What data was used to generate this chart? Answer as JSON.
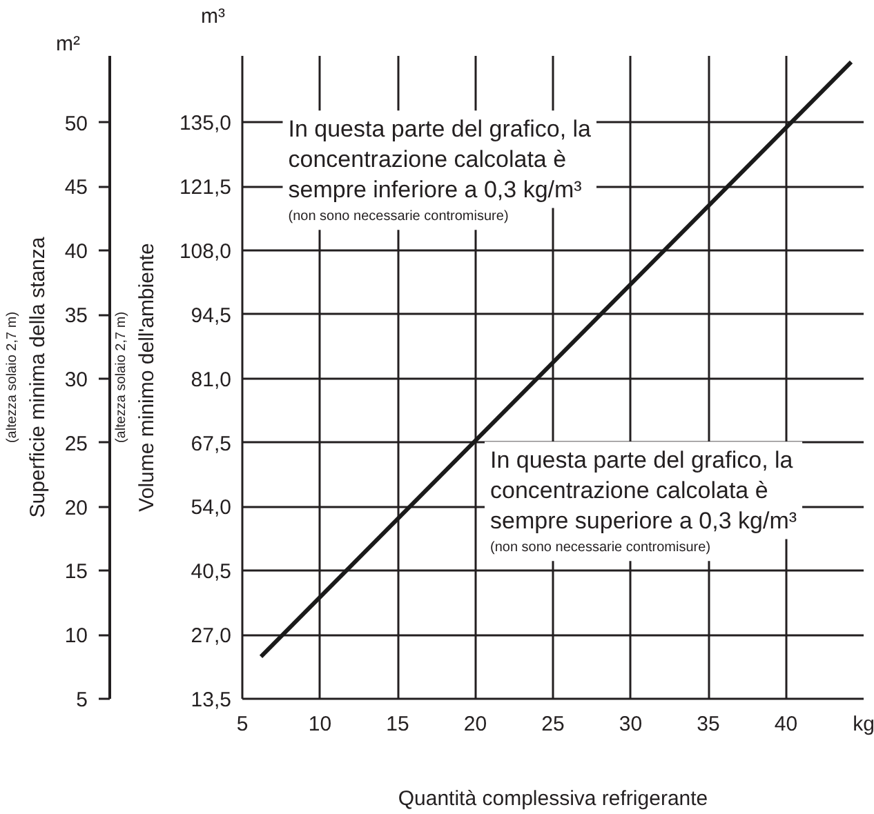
{
  "chart_data": {
    "type": "line",
    "xlabel": "Quantità complessiva refrigerante",
    "ylabel": "Volume minimo dell'ambiente",
    "y2label": "Superficie minima della stanza",
    "series": [
      {
        "x": [
          6.2,
          44.2
        ],
        "values": [
          22.4,
          147.7
        ],
        "color": "#1a1a1a"
      }
    ],
    "xlim": [
      5,
      45
    ],
    "xticks": [
      5,
      10,
      15,
      20,
      25,
      30,
      35,
      40,
      {
        "value": 45,
        "label": "kg"
      }
    ],
    "ylim": [
      13.5,
      149.0
    ],
    "yticks": [
      {
        "value": 13.5,
        "label": "13,5"
      },
      {
        "value": 27.0,
        "label": "27,0"
      },
      {
        "value": 40.5,
        "label": "40,5"
      },
      {
        "value": 54.0,
        "label": "54,0"
      },
      {
        "value": 67.5,
        "label": "67,5"
      },
      {
        "value": 81.0,
        "label": "81,0"
      },
      {
        "value": 94.5,
        "label": "94,5"
      },
      {
        "value": 108.0,
        "label": "108,0"
      },
      {
        "value": 121.5,
        "label": "121,5"
      },
      {
        "value": 135.0,
        "label": "135,0"
      }
    ],
    "y2lim": [
      5,
      55.2
    ],
    "y2ticks": [
      5,
      10,
      15,
      20,
      25,
      30,
      35,
      40,
      45,
      50
    ],
    "grid": true,
    "marker": "none",
    "line_style": "solid",
    "annotations": [
      "In questa parte del grafico, la concentrazione calcolata è sempre inferiore a 0,3 kg/m³",
      "(non sono necessarie contromisure)",
      "In questa parte del grafico, la concentrazione calcolata è sempre superiore a 0,3 kg/m³",
      "(non sono necessarie contromisure)",
      "(altezza solaio 2,7 m)",
      "(altezza solaio 2,7 m)",
      "m³",
      "m²"
    ]
  }
}
